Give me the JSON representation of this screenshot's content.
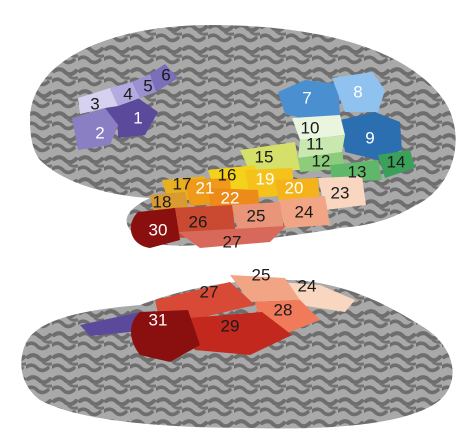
{
  "top_view": {
    "labels": [
      {
        "id": "1",
        "text": "1",
        "color": "light"
      },
      {
        "id": "2",
        "text": "2",
        "color": "light"
      },
      {
        "id": "3",
        "text": "3",
        "color": "dark"
      },
      {
        "id": "4",
        "text": "4",
        "color": "dark"
      },
      {
        "id": "5",
        "text": "5",
        "color": "dark"
      },
      {
        "id": "6",
        "text": "6",
        "color": "dark"
      },
      {
        "id": "7",
        "text": "7",
        "color": "light"
      },
      {
        "id": "8",
        "text": "8",
        "color": "light"
      },
      {
        "id": "9",
        "text": "9",
        "color": "light"
      },
      {
        "id": "10",
        "text": "10",
        "color": "dark"
      },
      {
        "id": "11",
        "text": "11",
        "color": "dark"
      },
      {
        "id": "12",
        "text": "12",
        "color": "dark"
      },
      {
        "id": "13",
        "text": "13",
        "color": "dark"
      },
      {
        "id": "14",
        "text": "14",
        "color": "dark"
      },
      {
        "id": "15",
        "text": "15",
        "color": "dark"
      },
      {
        "id": "16",
        "text": "16",
        "color": "dark"
      },
      {
        "id": "17",
        "text": "17",
        "color": "dark"
      },
      {
        "id": "18",
        "text": "18",
        "color": "dark"
      },
      {
        "id": "19",
        "text": "19",
        "color": "light"
      },
      {
        "id": "20",
        "text": "20",
        "color": "light"
      },
      {
        "id": "21",
        "text": "21",
        "color": "light"
      },
      {
        "id": "22",
        "text": "22",
        "color": "light"
      },
      {
        "id": "23",
        "text": "23",
        "color": "dark"
      },
      {
        "id": "24",
        "text": "24",
        "color": "dark"
      },
      {
        "id": "25",
        "text": "25",
        "color": "dark"
      },
      {
        "id": "26",
        "text": "26",
        "color": "dark"
      },
      {
        "id": "27",
        "text": "27",
        "color": "dark"
      },
      {
        "id": "30",
        "text": "30",
        "color": "light"
      }
    ]
  },
  "bottom_view": {
    "labels": [
      {
        "id": "25",
        "text": "25"
      },
      {
        "id": "24",
        "text": "24"
      },
      {
        "id": "27",
        "text": "27"
      },
      {
        "id": "28",
        "text": "28"
      },
      {
        "id": "31",
        "text": "31"
      },
      {
        "id": "29",
        "text": "29"
      }
    ]
  },
  "colors": {
    "brain_light": "#a8a8a8",
    "brain_dark": "#6f6f6f",
    "purple_dark": "#5b4a9c",
    "purple_mid": "#8b7fc4",
    "purple_light": "#c9c3e6",
    "blue_dark": "#2b6fb0",
    "blue_mid": "#4a8fd0",
    "blue_light": "#8fc2ee",
    "green_dark": "#3aa05a",
    "green_mid": "#8ccc7a",
    "green_light": "#c8e8b0",
    "yellow": "#f2d21a",
    "orange": "#f09a1a",
    "salmon": "#f2a585",
    "peach": "#f8d6c0",
    "red_dark": "#8a1010",
    "red": "#c2281e",
    "red_mid": "#d84a36"
  }
}
